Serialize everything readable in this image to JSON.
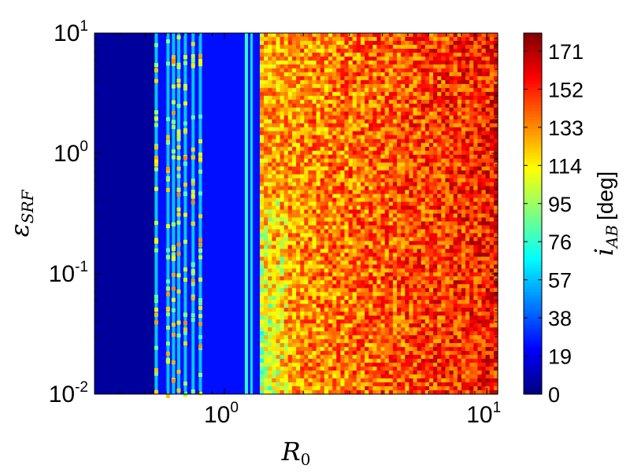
{
  "chart_data": {
    "type": "heatmap",
    "xlabel": "R",
    "xlabel_sub": "0",
    "ylabel": "ε",
    "ylabel_sub": "SRF",
    "x_scale": "log",
    "y_scale": "log",
    "xlim": [
      0.32,
      11
    ],
    "ylim": [
      0.01,
      10
    ],
    "x_ticks": [
      {
        "value": 1,
        "base": "10",
        "exp": "0"
      },
      {
        "value": 10,
        "base": "10",
        "exp": "1"
      }
    ],
    "y_ticks": [
      {
        "value": 0.01,
        "base": "10",
        "exp": "-2"
      },
      {
        "value": 0.1,
        "base": "10",
        "exp": "-1"
      },
      {
        "value": 1,
        "base": "10",
        "exp": "0"
      },
      {
        "value": 10,
        "base": "10",
        "exp": "1"
      }
    ],
    "colorbar": {
      "label": "i",
      "label_sub": "AB",
      "label_unit": "[deg]",
      "range": [
        0,
        180
      ],
      "ticks": [
        "0",
        "19",
        "38",
        "57",
        "76",
        "95",
        "114",
        "133",
        "152",
        "171"
      ],
      "colormap": "jet"
    },
    "regions": [
      {
        "x_range": [
          0.32,
          0.55
        ],
        "i_AB_deg": 5,
        "description": "uniform low inclination"
      },
      {
        "x_range": [
          0.55,
          1.18
        ],
        "i_AB_deg": 25,
        "description": "low inclination with high-value streaks"
      },
      {
        "x_range": [
          1.18,
          1.32
        ],
        "i_AB_deg": 60,
        "description": "narrow transition band"
      },
      {
        "x_range": [
          1.32,
          11
        ],
        "i_AB_deg": 150,
        "description": "noisy high inclination increasing with R0"
      }
    ],
    "grid": false
  }
}
